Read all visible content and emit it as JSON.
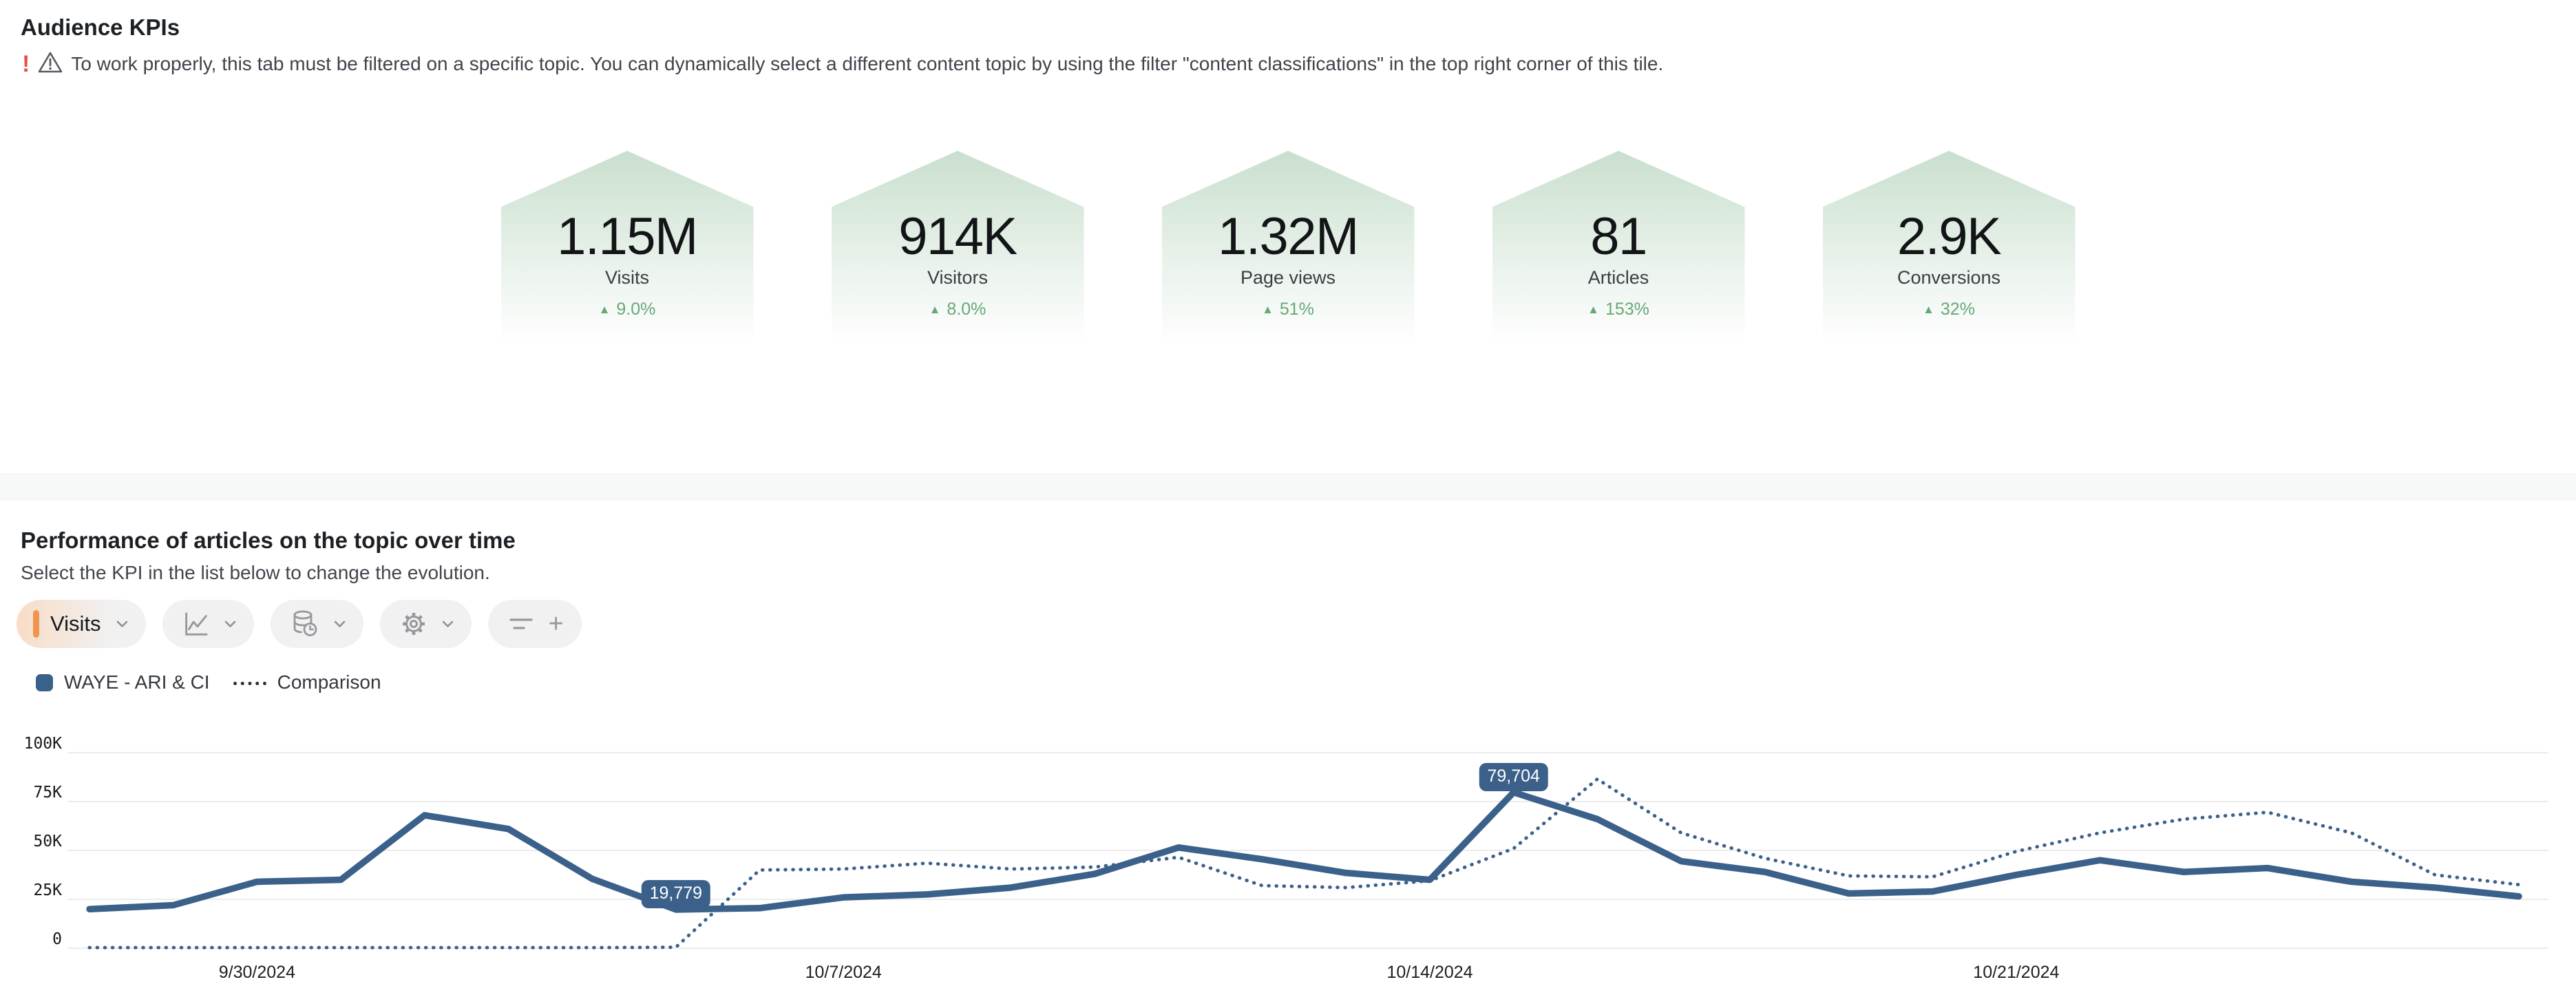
{
  "page": {
    "title": "Audience KPIs",
    "warning": "To work properly, this tab must be filtered on a specific topic. You can dynamically select a different content topic by using the filter \"content classifications\" in the top right corner of this tile."
  },
  "icons": {
    "up_arrow": "▲",
    "plus": "+",
    "exclamation": "!"
  },
  "kpi_tiles": [
    {
      "value": "1.15M",
      "label": "Visits",
      "delta": "9.0%"
    },
    {
      "value": "914K",
      "label": "Visitors",
      "delta": "8.0%"
    },
    {
      "value": "1.32M",
      "label": "Page views",
      "delta": "51%"
    },
    {
      "value": "81",
      "label": "Articles",
      "delta": "153%"
    },
    {
      "value": "2.9K",
      "label": "Conversions",
      "delta": "32%"
    }
  ],
  "section2": {
    "title": "Performance of articles on the topic over time",
    "subtitle": "Select the KPI in the list below to change the evolution.",
    "kpi_button_label": "Visits"
  },
  "legend": [
    {
      "label": "WAYE - ARI & CI"
    },
    {
      "label": "Comparison"
    }
  ],
  "colors": {
    "series_blue": "#3b618a",
    "accent_orange": "#ef9550",
    "delta_green": "#67a878",
    "tile_green": "#c9dfce",
    "warning_red": "#e2544a",
    "gridline": "#ececec"
  },
  "chart_data": {
    "type": "line",
    "x": [
      "9/28/2024",
      "9/29/2024",
      "9/30/2024",
      "10/1/2024",
      "10/2/2024",
      "10/3/2024",
      "10/4/2024",
      "10/5/2024",
      "10/6/2024",
      "10/7/2024",
      "10/8/2024",
      "10/9/2024",
      "10/10/2024",
      "10/11/2024",
      "10/12/2024",
      "10/13/2024",
      "10/14/2024",
      "10/15/2024",
      "10/16/2024",
      "10/17/2024",
      "10/18/2024",
      "10/19/2024",
      "10/20/2024",
      "10/21/2024",
      "10/22/2024",
      "10/23/2024",
      "10/24/2024",
      "10/25/2024",
      "10/26/2024",
      "10/27/2024"
    ],
    "series": [
      {
        "name": "WAYE - ARI & CI",
        "style": "solid",
        "color": "#3b618a",
        "values": [
          20000,
          22000,
          34000,
          35000,
          68000,
          61000,
          35500,
          19779,
          20500,
          26000,
          27500,
          31000,
          38000,
          51500,
          45500,
          38500,
          35000,
          79704,
          66000,
          44500,
          39000,
          28000,
          29000,
          37500,
          45000,
          39000,
          41000,
          34000,
          31000,
          26500
        ]
      },
      {
        "name": "Comparison",
        "style": "dotted",
        "color": "#3b618a",
        "values": [
          300,
          300,
          300,
          300,
          300,
          300,
          300,
          500,
          40000,
          40500,
          43500,
          40500,
          41500,
          46500,
          32000,
          31000,
          34500,
          51000,
          86500,
          59000,
          46000,
          37000,
          36500,
          49500,
          59000,
          66000,
          69500,
          59000,
          37500,
          32500
        ]
      }
    ],
    "y_ticks": [
      {
        "label": "0",
        "value": 0
      },
      {
        "label": "25K",
        "value": 25000
      },
      {
        "label": "50K",
        "value": 50000
      },
      {
        "label": "75K",
        "value": 75000
      },
      {
        "label": "100K",
        "value": 100000
      }
    ],
    "ylim": [
      0,
      100000
    ],
    "x_tick_labels": [
      {
        "label": "9/30/2024",
        "index": 2
      },
      {
        "label": "10/7/2024",
        "index": 9
      },
      {
        "label": "10/14/2024",
        "index": 16
      },
      {
        "label": "10/21/2024",
        "index": 23
      }
    ],
    "annotations": [
      {
        "series": 0,
        "index": 7,
        "label": "19,779"
      },
      {
        "series": 0,
        "index": 17,
        "label": "79,704"
      }
    ],
    "grid": "horizontal",
    "legend_position": "top-left"
  }
}
